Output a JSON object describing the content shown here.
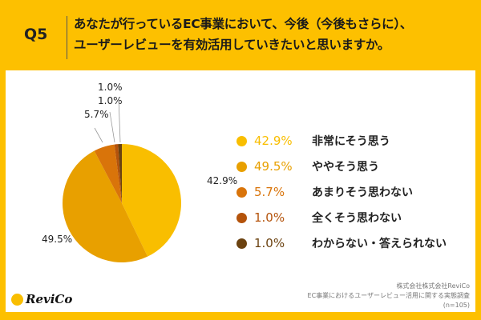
{
  "header": {
    "question_no": "Q5",
    "title_line1": "あなたが行っているEC事業において、今後（今後もさらに）、",
    "title_line2": "ユーザーレビューを有効活用していきたいと思いますか。"
  },
  "chart_data": {
    "type": "pie",
    "start": "top",
    "direction": "clockwise",
    "slices": [
      {
        "label": "非常にそう思う",
        "value": 42.9,
        "display": "42.9%",
        "color": "#F9BE00"
      },
      {
        "label": "ややそう思う",
        "value": 49.5,
        "display": "49.5%",
        "color": "#E8A000"
      },
      {
        "label": "あまりそう思わない",
        "value": 5.7,
        "display": "5.7%",
        "color": "#D9740A"
      },
      {
        "label": "全くそう思わない",
        "value": 1.0,
        "display": "1.0%",
        "color": "#B4530B"
      },
      {
        "label": "わからない・答えられない",
        "value": 1.0,
        "display": "1.0%",
        "color": "#6B4210"
      }
    ],
    "legend": "right"
  },
  "footer": {
    "company": "株式会社株式会社ReviCo",
    "survey": "EC事業におけるユーザーレビュー活用に関する実態調査",
    "sample": "(n=105)",
    "logo": "ReviCo"
  }
}
